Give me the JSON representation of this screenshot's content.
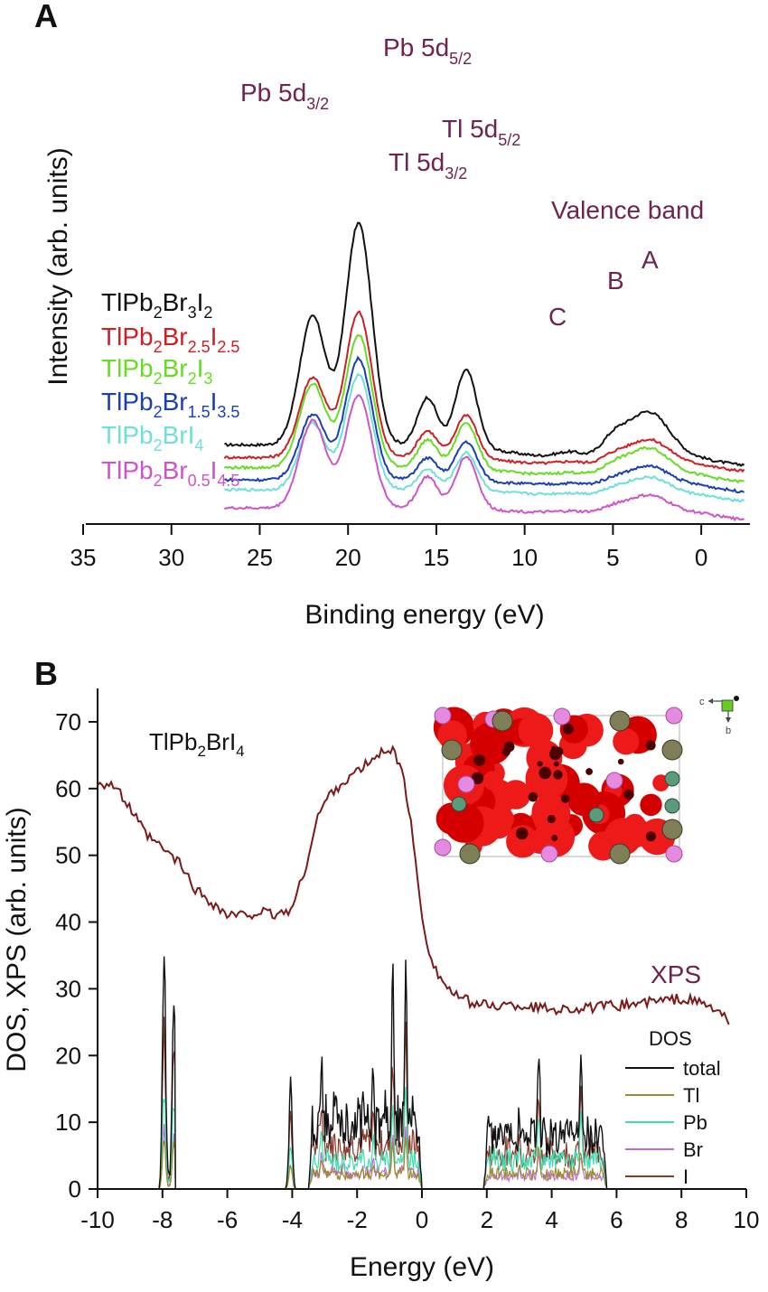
{
  "chart_data": [
    {
      "panel": "A",
      "type": "line",
      "xlabel": "Binding energy (eV)",
      "ylabel": "Intensity (arb. units)",
      "xlim": [
        35,
        -2.5
      ],
      "x_reversed": true,
      "xticks": [
        "35",
        "30",
        "25",
        "20",
        "15",
        "10",
        "5",
        "0"
      ],
      "annotations": {
        "pb_52": {
          "main": "Pb 5d",
          "sub": "5/2"
        },
        "pb_32": {
          "main": "Pb 5d",
          "sub": "3/2"
        },
        "tl_52": {
          "main": "Tl 5d",
          "sub": "5/2"
        },
        "tl_32": {
          "main": "Tl 5d",
          "sub": "3/2"
        },
        "valence": "Valence band",
        "A": "A",
        "B": "B",
        "C": "C"
      },
      "peak_positions_eV": {
        "Pb 5d5/2": 19.4,
        "Pb 5d3/2": 22.0,
        "Tl 5d5/2": 13.3,
        "Tl 5d3/2": 15.5,
        "A": 3.0,
        "B": 5.0,
        "C": 7.5
      },
      "series": [
        {
          "name": "TlPb2Br3I2",
          "label_parts": [
            [
              "TlPb",
              ""
            ],
            [
              "2",
              "sub"
            ],
            [
              "Br",
              ""
            ],
            [
              "3",
              "sub"
            ],
            [
              "I",
              ""
            ],
            [
              "2",
              "sub"
            ]
          ],
          "color": "#111111",
          "baseline": 5.0,
          "amp_pb52": 18.3,
          "amp_pb32": 10.6,
          "amp_tl52": 6.3,
          "amp_tl32": 3.9,
          "amp_A": 3.9,
          "amp_B": 1.4,
          "amp_C": 0.6
        },
        {
          "name": "TlPb2Br2.5I2.5",
          "label_parts": [
            [
              "TlPb",
              ""
            ],
            [
              "2",
              "sub"
            ],
            [
              "Br",
              ""
            ],
            [
              "2.5",
              "sub"
            ],
            [
              "I",
              ""
            ],
            [
              "2.5",
              "sub"
            ]
          ],
          "color": "#cc2027",
          "baseline": 4.5,
          "amp_pb52": 12.0,
          "amp_pb32": 6.6,
          "amp_tl52": 3.6,
          "amp_tl32": 2.2,
          "amp_A": 2.1,
          "amp_B": 0.6,
          "amp_C": 0.3
        },
        {
          "name": "TlPb2Br2I3",
          "label_parts": [
            [
              "TlPb",
              ""
            ],
            [
              "2",
              "sub"
            ],
            [
              "Br",
              ""
            ],
            [
              "2",
              "sub"
            ],
            [
              "I",
              ""
            ],
            [
              "3",
              "sub"
            ]
          ],
          "color": "#66dd22",
          "baseline": 3.6,
          "amp_pb52": 11.0,
          "amp_pb32": 6.9,
          "amp_tl52": 3.8,
          "amp_tl32": 2.3,
          "amp_A": 2.3,
          "amp_B": 0.7,
          "amp_C": 0.3
        },
        {
          "name": "TlPb2Br1.5I3.5",
          "label_parts": [
            [
              "TlPb",
              ""
            ],
            [
              "2",
              "sub"
            ],
            [
              "Br",
              ""
            ],
            [
              "1.5",
              "sub"
            ],
            [
              "I",
              ""
            ],
            [
              "3.5",
              "sub"
            ]
          ],
          "color": "#1a3fb0",
          "baseline": 2.8,
          "amp_pb52": 10.0,
          "amp_pb32": 5.4,
          "amp_tl52": 3.2,
          "amp_tl32": 1.8,
          "amp_A": 1.6,
          "amp_B": 0.4,
          "amp_C": 0.2
        },
        {
          "name": "TlPb2BrI4",
          "label_parts": [
            [
              "TlPb",
              ""
            ],
            [
              "2",
              "sub"
            ],
            [
              "BrI",
              ""
            ],
            [
              "4",
              "sub"
            ]
          ],
          "color": "#6fe0d8",
          "baseline": 2.0,
          "amp_pb52": 9.5,
          "amp_pb32": 5.5,
          "amp_tl52": 3.1,
          "amp_tl32": 1.7,
          "amp_A": 1.5,
          "amp_B": 0.4,
          "amp_C": 0.2
        },
        {
          "name": "TlPb2Br0.5I4.5",
          "label_parts": [
            [
              "TlPb",
              ""
            ],
            [
              "2",
              "sub"
            ],
            [
              "Br",
              ""
            ],
            [
              "0.5",
              "sub"
            ],
            [
              "I",
              ""
            ],
            [
              "4.5",
              "sub"
            ]
          ],
          "color": "#cc55cc",
          "baseline": 0.5,
          "amp_pb52": 9.3,
          "amp_pb32": 7.2,
          "amp_tl52": 4.3,
          "amp_tl32": 2.6,
          "amp_A": 1.5,
          "amp_B": 0.4,
          "amp_C": 0.2
        }
      ]
    },
    {
      "panel": "B",
      "type": "line",
      "xlabel": "Energy (eV)",
      "ylabel": "DOS, XPS (arb. units)",
      "xlim": [
        -10,
        10
      ],
      "ylim": [
        0,
        75
      ],
      "xticks": [
        "-10",
        "-8",
        "-6",
        "-4",
        "-2",
        "0",
        "2",
        "4",
        "6",
        "8",
        "10"
      ],
      "yticks": [
        "0",
        "10",
        "20",
        "30",
        "40",
        "50",
        "60",
        "70"
      ],
      "compound": {
        "main": "TlPb",
        "sub1": "2",
        "mid": "BrI",
        "sub2": "4"
      },
      "xps_label": "XPS",
      "xps": {
        "name": "XPS",
        "color": "#7a1a1a",
        "x": [
          -10,
          -9.5,
          -9,
          -8.5,
          -8,
          -7.5,
          -7,
          -6.5,
          -6,
          -5.5,
          -5,
          -4.5,
          -4,
          -3.6,
          -3.2,
          -2.8,
          -2.4,
          -2,
          -1.6,
          -1.2,
          -1,
          -0.8,
          -0.6,
          -0.4,
          -0.2,
          0,
          0.2,
          0.5,
          1,
          1.5,
          2,
          3,
          4,
          5,
          6,
          7,
          8,
          8.5,
          9,
          9.5
        ],
        "y": [
          61,
          60.5,
          57,
          53,
          51,
          49,
          45,
          43,
          41,
          41,
          41.5,
          41,
          42,
          48,
          56,
          59.5,
          61,
          62.5,
          64,
          65.5,
          66.2,
          65,
          62,
          57,
          49,
          41,
          36,
          32,
          29,
          28,
          27.5,
          27.5,
          27,
          27,
          27.5,
          28,
          28.5,
          28,
          27,
          25
        ]
      },
      "dos_legend_title": "DOS",
      "dos_series": [
        {
          "name": "total",
          "color": "#111111"
        },
        {
          "name": "Tl",
          "color": "#9c8a2c"
        },
        {
          "name": "Pb",
          "color": "#3fdcae"
        },
        {
          "name": "Br",
          "color": "#c06ad8"
        },
        {
          "name": "I",
          "color": "#8a3a2a"
        }
      ],
      "dos_bands": [
        {
          "from": -8.1,
          "to": -7.6,
          "peaks": [
            [
              -7.95,
              34
            ],
            [
              -7.65,
              31
            ]
          ],
          "base": 3
        },
        {
          "from": -4.2,
          "to": -3.9,
          "peaks": [
            [
              -4.05,
              15
            ]
          ],
          "base": 4
        },
        {
          "from": -3.5,
          "to": 0,
          "peaks": [
            [
              -3.1,
              21
            ],
            [
              -0.5,
              34
            ],
            [
              -0.9,
              31
            ],
            [
              -1.5,
              18
            ]
          ],
          "base": 12
        },
        {
          "from": 1.9,
          "to": 5.7,
          "peaks": [
            [
              3.6,
              21.5
            ],
            [
              4.9,
              20.5
            ],
            [
              3.0,
              12
            ]
          ],
          "base": 9
        }
      ],
      "inset_axes": {
        "c": "c",
        "b": "b"
      }
    }
  ]
}
